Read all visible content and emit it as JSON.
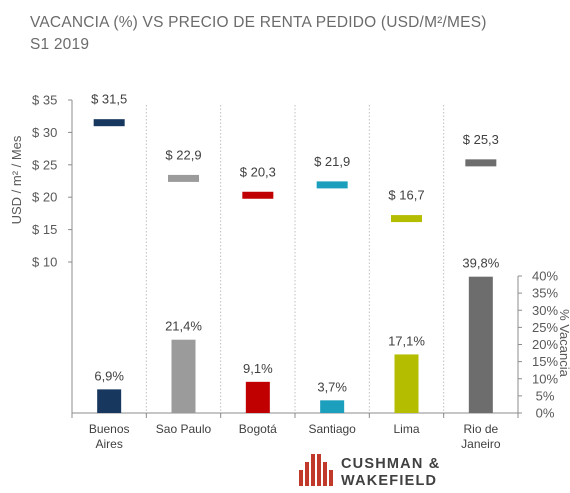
{
  "title_line1": "VACANCIA (%) VS PRECIO DE RENTA PEDIDO (USD/M²/MES)",
  "title_line2": "S1 2019",
  "logo": {
    "line1": "CUSHMAN &",
    "line2": "WAKEFIELD"
  },
  "chart_data": {
    "type": "bar",
    "categories": [
      [
        "Buenos",
        "Aires"
      ],
      [
        "Sao Paulo"
      ],
      [
        "Bogotá"
      ],
      [
        "Santiago"
      ],
      [
        "Lima"
      ],
      [
        "Rio de",
        "Janeiro"
      ]
    ],
    "colors": [
      "#17375e",
      "#9b9b9b",
      "#c00000",
      "#1c9ebd",
      "#b5bd00",
      "#6d6d6d"
    ],
    "price": {
      "label": "USD / m² / Mes",
      "values": [
        31.5,
        22.9,
        20.3,
        21.9,
        16.7,
        25.3
      ],
      "value_labels": [
        "$ 31,5",
        "$ 22,9",
        "$ 20,3",
        "$ 21,9",
        "$ 16,7",
        "$ 25,3"
      ],
      "ylim": [
        10,
        35
      ],
      "ticks": [
        10,
        15,
        20,
        25,
        30,
        35
      ],
      "tick_labels": [
        "$ 10",
        "$ 15",
        "$ 20",
        "$ 25",
        "$ 30",
        "$ 35"
      ]
    },
    "vacancy": {
      "label": "% Vacancia",
      "values": [
        6.9,
        21.4,
        9.1,
        3.7,
        17.1,
        39.8
      ],
      "value_labels": [
        "6,9%",
        "21,4%",
        "9,1%",
        "3,7%",
        "17,1%",
        "39,8%"
      ],
      "ylim": [
        0,
        40
      ],
      "ticks": [
        0,
        5,
        10,
        15,
        20,
        25,
        30,
        35,
        40
      ],
      "tick_labels": [
        "0%",
        "5%",
        "10%",
        "15%",
        "20%",
        "25%",
        "30%",
        "35%",
        "40%"
      ]
    }
  }
}
